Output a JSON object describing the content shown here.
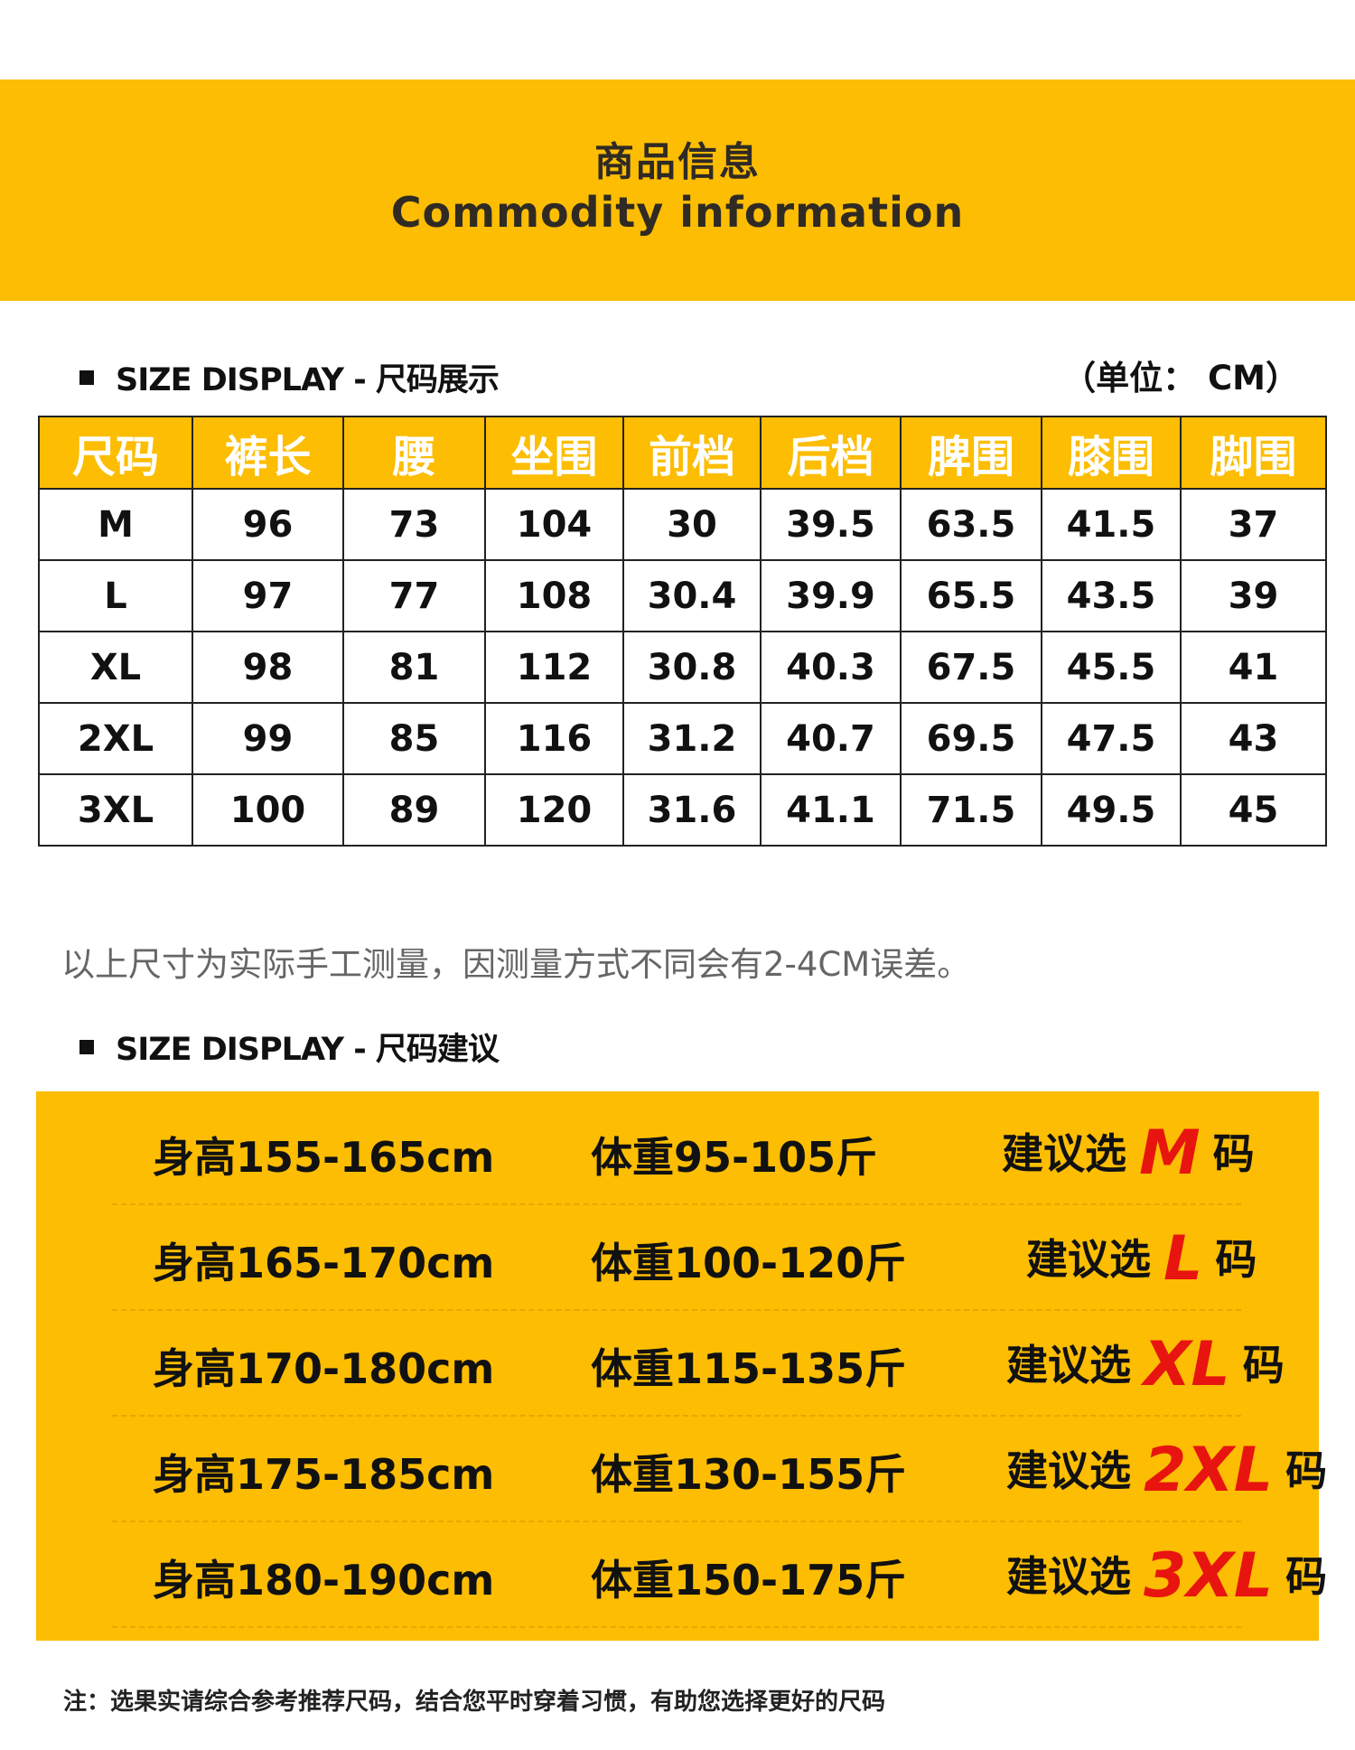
{
  "banner": {
    "title_cn": "商品信息",
    "title_en": "Commodity information"
  },
  "size_section": {
    "heading": "SIZE DISPLAY - 尺码展示",
    "unit": "（单位： CM）"
  },
  "size_table": {
    "headers": [
      "尺码",
      "裤长",
      "腰",
      "坐围",
      "前档",
      "后档",
      "脾围",
      "膝围",
      "脚围"
    ],
    "rows": [
      [
        "M",
        "96",
        "73",
        "104",
        "30",
        "39.5",
        "63.5",
        "41.5",
        "37"
      ],
      [
        "L",
        "97",
        "77",
        "108",
        "30.4",
        "39.9",
        "65.5",
        "43.5",
        "39"
      ],
      [
        "XL",
        "98",
        "81",
        "112",
        "30.8",
        "40.3",
        "67.5",
        "45.5",
        "41"
      ],
      [
        "2XL",
        "99",
        "85",
        "116",
        "31.2",
        "40.7",
        "69.5",
        "47.5",
        "43"
      ],
      [
        "3XL",
        "100",
        "89",
        "120",
        "31.6",
        "41.1",
        "71.5",
        "49.5",
        "45"
      ]
    ]
  },
  "measure_note": "以上尺寸为实际手工测量，因测量方式不同会有2-4CM误差。",
  "rec_section": {
    "heading": "SIZE DISPLAY - 尺码建议"
  },
  "recommendations": [
    {
      "height": "身高155-165cm",
      "weight": "体重95-105斤",
      "prefix": "建议选",
      "size": "M",
      "suffix": "码"
    },
    {
      "height": "身高165-170cm",
      "weight": "体重100-120斤",
      "prefix": "建议选",
      "size": "L",
      "suffix": "码"
    },
    {
      "height": "身高170-180cm",
      "weight": "体重115-135斤",
      "prefix": "建议选",
      "size": "XL",
      "suffix": "码"
    },
    {
      "height": "身高175-185cm",
      "weight": "体重130-155斤",
      "prefix": "建议选",
      "size": "2XL",
      "suffix": "码"
    },
    {
      "height": "身高180-190cm",
      "weight": "体重150-175斤",
      "prefix": "建议选",
      "size": "3XL",
      "suffix": "码"
    }
  ],
  "footer_note": "注：选果实请综合参考推荐尺码，结合您平时穿着习惯，有助您选择更好的尺码",
  "colors": {
    "accent": "#fcbd02",
    "size_highlight": "#e8140f"
  }
}
